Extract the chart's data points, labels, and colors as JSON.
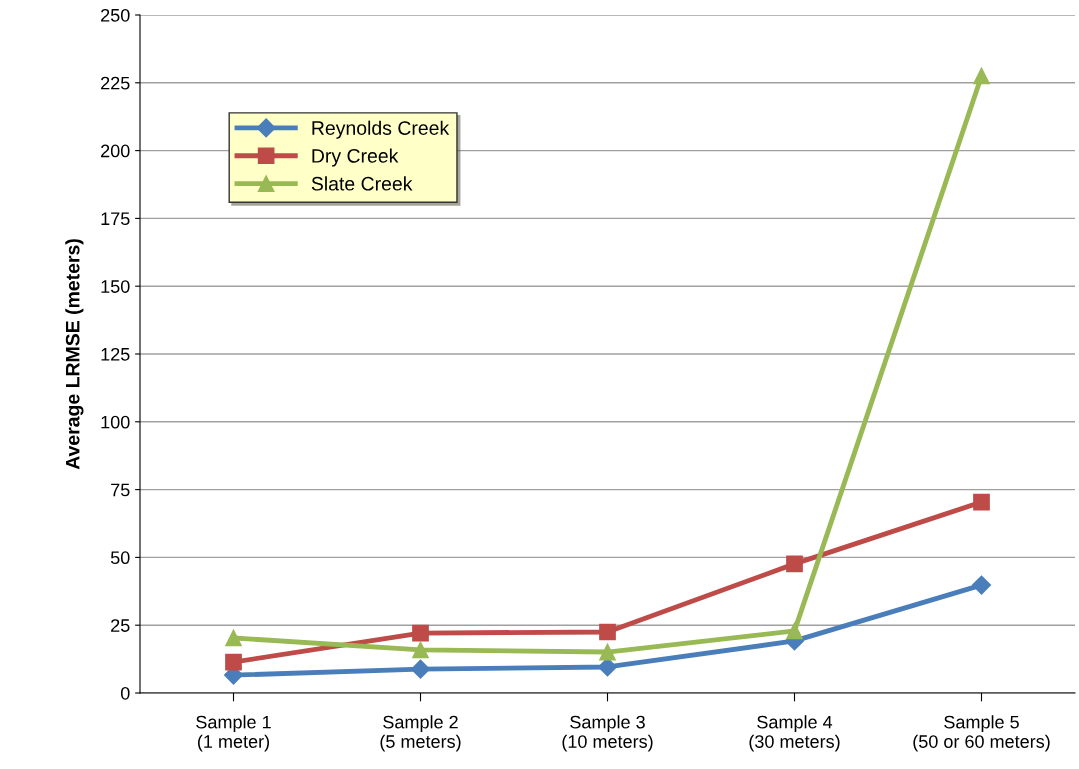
{
  "chart_data": {
    "type": "line",
    "ylabel": "Average LRMSE (meters)",
    "categories": [
      "Sample 1\n(1 meter)",
      "Sample 2\n(5 meters)",
      "Sample 3\n(10 meters)",
      "Sample 4\n(30 meters)",
      "Sample 5\n(50 or 60 meters)"
    ],
    "series": [
      {
        "name": "Reynolds Creek",
        "color": "#4a7ebb",
        "marker": "diamond",
        "values": [
          6.6,
          8.8,
          9.6,
          19.2,
          39.8
        ]
      },
      {
        "name": "Dry Creek",
        "color": "#be4b48",
        "marker": "square",
        "values": [
          11.4,
          22.1,
          22.5,
          47.6,
          70.4
        ]
      },
      {
        "name": "Slate Creek",
        "color": "#98b954",
        "marker": "triangle",
        "values": [
          20.3,
          15.9,
          15.1,
          22.9,
          227.5
        ]
      }
    ],
    "ylim": [
      0,
      250
    ],
    "yticks": [
      0,
      25,
      50,
      75,
      100,
      125,
      150,
      175,
      200,
      225,
      250
    ],
    "grid": "y",
    "legend": "top left",
    "line_style": "solid"
  }
}
